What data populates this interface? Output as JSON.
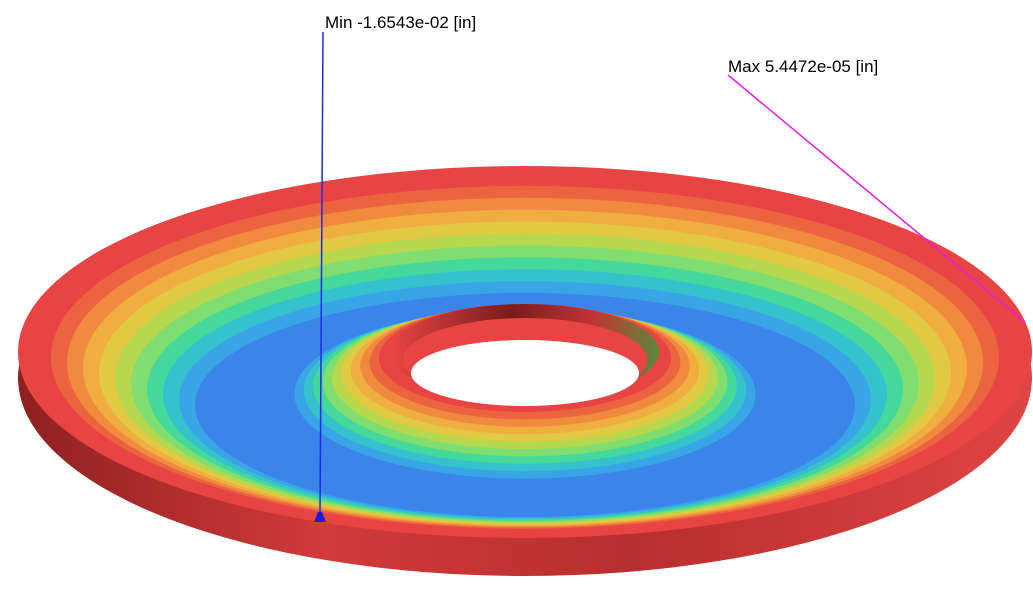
{
  "annotations": {
    "min": {
      "text": "Min -1.6543e-02 [in]"
    },
    "max": {
      "text": "Max 5.4472e-05 [in]"
    }
  }
}
